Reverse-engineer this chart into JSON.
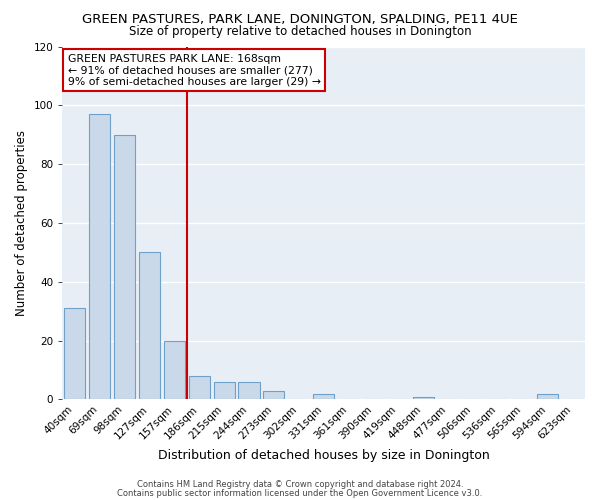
{
  "title": "GREEN PASTURES, PARK LANE, DONINGTON, SPALDING, PE11 4UE",
  "subtitle": "Size of property relative to detached houses in Donington",
  "xlabel": "Distribution of detached houses by size in Donington",
  "ylabel": "Number of detached properties",
  "bar_color": "#c9d9ea",
  "bar_edgecolor": "#6fa0c8",
  "background_color": "#ffffff",
  "axes_bg_color": "#e8eef5",
  "grid_color": "#ffffff",
  "categories": [
    "40sqm",
    "69sqm",
    "98sqm",
    "127sqm",
    "157sqm",
    "186sqm",
    "215sqm",
    "244sqm",
    "273sqm",
    "302sqm",
    "331sqm",
    "361sqm",
    "390sqm",
    "419sqm",
    "448sqm",
    "477sqm",
    "506sqm",
    "536sqm",
    "565sqm",
    "594sqm",
    "623sqm"
  ],
  "values": [
    31,
    97,
    90,
    50,
    20,
    8,
    6,
    6,
    3,
    0,
    2,
    0,
    0,
    0,
    1,
    0,
    0,
    0,
    0,
    2,
    0
  ],
  "vline_x": 4.5,
  "vline_color": "#cc0000",
  "annotation_title": "GREEN PASTURES PARK LANE: 168sqm",
  "annotation_line1": "← 91% of detached houses are smaller (277)",
  "annotation_line2": "9% of semi-detached houses are larger (29) →",
  "annotation_box_facecolor": "#ffffff",
  "annotation_box_edgecolor": "#cc0000",
  "ylim": [
    0,
    120
  ],
  "yticks": [
    0,
    20,
    40,
    60,
    80,
    100,
    120
  ],
  "footer1": "Contains HM Land Registry data © Crown copyright and database right 2024.",
  "footer2": "Contains public sector information licensed under the Open Government Licence v3.0.",
  "title_fontsize": 9.5,
  "subtitle_fontsize": 8.5,
  "xlabel_fontsize": 9.0,
  "ylabel_fontsize": 8.5,
  "tick_fontsize": 7.5,
  "footer_fontsize": 6.0
}
